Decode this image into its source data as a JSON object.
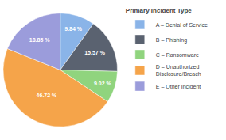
{
  "chart_data": {
    "type": "pie",
    "title": "Primary Incident Type",
    "categories": [
      "A – Denial of Service",
      "B – Phishing",
      "C – Ransomware",
      "D – Unauthorized\nDisclosure/Breach",
      "E – Other Incident"
    ],
    "values": [
      9.84,
      15.57,
      9.02,
      46.72,
      18.85
    ],
    "value_labels": [
      "9.84 %",
      "15.57 %",
      "9.02 %",
      "46.72 %",
      "18.85 %"
    ],
    "colors": [
      "#8ab4e8",
      "#5a6270",
      "#90d47e",
      "#f5a44a",
      "#9b9cdb"
    ],
    "data_labels": true,
    "legend": "right"
  }
}
